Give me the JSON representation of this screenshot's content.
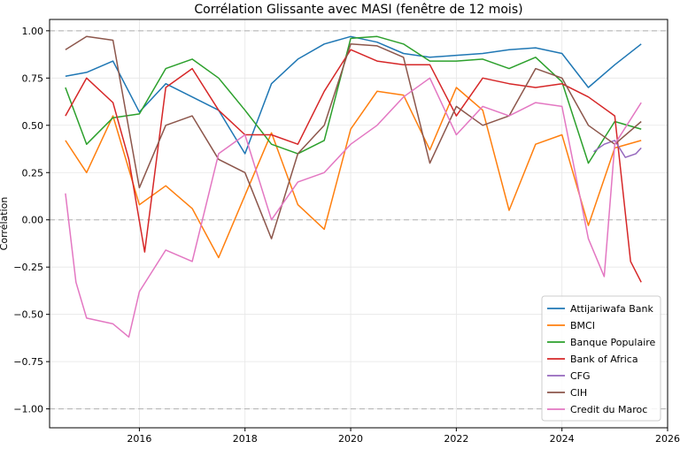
{
  "chart_data": {
    "type": "line",
    "title": "Corrélation Glissante avec MASI (fenêtre de 12 mois)",
    "xlabel": "",
    "ylabel": "Corrélation",
    "xlim": [
      2014.3,
      2026.0
    ],
    "ylim": [
      -1.1,
      1.06
    ],
    "xticks": [
      {
        "value": 2016,
        "label": "2016"
      },
      {
        "value": 2018,
        "label": "2018"
      },
      {
        "value": 2020,
        "label": "2020"
      },
      {
        "value": 2022,
        "label": "2022"
      },
      {
        "value": 2024,
        "label": "2024"
      },
      {
        "value": 2026,
        "label": "2026"
      }
    ],
    "yticks": [
      {
        "value": 1.0,
        "label": "1.00"
      },
      {
        "value": 0.75,
        "label": "0.75"
      },
      {
        "value": 0.5,
        "label": "0.50"
      },
      {
        "value": 0.25,
        "label": "0.25"
      },
      {
        "value": 0.0,
        "label": "0.00"
      },
      {
        "value": -0.25,
        "label": "−0.25"
      },
      {
        "value": -0.5,
        "label": "−0.50"
      },
      {
        "value": -0.75,
        "label": "−0.75"
      },
      {
        "value": -1.0,
        "label": "−1.00"
      }
    ],
    "reference_lines": [
      1.0,
      0.0,
      -1.0
    ],
    "grid": true,
    "legend_position": "bottom-right",
    "series": [
      {
        "name": "Attijariwafa Bank",
        "color": "#1f77b4",
        "x": [
          2014.6,
          2015.0,
          2015.5,
          2016.0,
          2016.5,
          2017.0,
          2017.5,
          2018.0,
          2018.5,
          2019.0,
          2019.5,
          2020.0,
          2020.5,
          2021.0,
          2021.5,
          2022.0,
          2022.5,
          2023.0,
          2023.5,
          2024.0,
          2024.5,
          2025.0,
          2025.5
        ],
        "y": [
          0.76,
          0.78,
          0.84,
          0.57,
          0.72,
          0.65,
          0.58,
          0.35,
          0.72,
          0.85,
          0.93,
          0.97,
          0.94,
          0.88,
          0.86,
          0.87,
          0.88,
          0.9,
          0.91,
          0.88,
          0.7,
          0.82,
          0.93
        ]
      },
      {
        "name": "BMCI",
        "color": "#ff7f0e",
        "x": [
          2014.6,
          2015.0,
          2015.5,
          2016.0,
          2016.5,
          2017.0,
          2017.5,
          2018.0,
          2018.5,
          2019.0,
          2019.5,
          2020.0,
          2020.5,
          2021.0,
          2021.5,
          2022.0,
          2022.5,
          2023.0,
          2023.5,
          2024.0,
          2024.5,
          2025.0,
          2025.5
        ],
        "y": [
          0.42,
          0.25,
          0.55,
          0.08,
          0.18,
          0.06,
          -0.2,
          0.13,
          0.46,
          0.08,
          -0.05,
          0.48,
          0.68,
          0.66,
          0.37,
          0.7,
          0.58,
          0.05,
          0.4,
          0.45,
          -0.03,
          0.38,
          0.42
        ]
      },
      {
        "name": "Banque Populaire",
        "color": "#2ca02c",
        "x": [
          2014.6,
          2015.0,
          2015.5,
          2016.0,
          2016.5,
          2017.0,
          2017.5,
          2018.0,
          2018.5,
          2019.0,
          2019.5,
          2020.0,
          2020.5,
          2021.0,
          2021.5,
          2022.0,
          2022.5,
          2023.0,
          2023.5,
          2024.0,
          2024.5,
          2025.0,
          2025.5
        ],
        "y": [
          0.7,
          0.4,
          0.54,
          0.56,
          0.8,
          0.85,
          0.75,
          0.58,
          0.4,
          0.35,
          0.42,
          0.96,
          0.97,
          0.93,
          0.84,
          0.84,
          0.85,
          0.8,
          0.86,
          0.73,
          0.3,
          0.52,
          0.48
        ]
      },
      {
        "name": "Bank of Africa",
        "color": "#d62728",
        "x": [
          2014.6,
          2015.0,
          2015.5,
          2015.8,
          2016.1,
          2016.5,
          2017.0,
          2017.5,
          2018.0,
          2018.5,
          2019.0,
          2019.5,
          2020.0,
          2020.5,
          2021.0,
          2021.5,
          2022.0,
          2022.5,
          2023.0,
          2023.5,
          2024.0,
          2024.5,
          2025.0,
          2025.3,
          2025.5
        ],
        "y": [
          0.55,
          0.75,
          0.62,
          0.32,
          -0.17,
          0.7,
          0.8,
          0.58,
          0.45,
          0.45,
          0.4,
          0.68,
          0.9,
          0.84,
          0.82,
          0.82,
          0.55,
          0.75,
          0.72,
          0.7,
          0.72,
          0.65,
          0.55,
          -0.22,
          -0.33
        ]
      },
      {
        "name": "CFG",
        "color": "#9467bd",
        "x": [
          2024.6,
          2024.8,
          2025.0,
          2025.2,
          2025.4,
          2025.5
        ],
        "y": [
          0.36,
          0.4,
          0.42,
          0.33,
          0.35,
          0.38
        ]
      },
      {
        "name": "CIH",
        "color": "#8c564b",
        "x": [
          2014.6,
          2015.0,
          2015.5,
          2016.0,
          2016.5,
          2017.0,
          2017.5,
          2018.0,
          2018.5,
          2019.0,
          2019.5,
          2020.0,
          2020.5,
          2021.0,
          2021.5,
          2022.0,
          2022.5,
          2023.0,
          2023.5,
          2024.0,
          2024.5,
          2025.0,
          2025.5
        ],
        "y": [
          0.9,
          0.97,
          0.95,
          0.17,
          0.5,
          0.55,
          0.32,
          0.25,
          -0.1,
          0.35,
          0.5,
          0.93,
          0.92,
          0.86,
          0.3,
          0.6,
          0.5,
          0.55,
          0.8,
          0.75,
          0.5,
          0.4,
          0.52
        ]
      },
      {
        "name": "Credit du Maroc",
        "color": "#e377c2",
        "x": [
          2014.6,
          2014.8,
          2015.0,
          2015.5,
          2015.8,
          2016.0,
          2016.5,
          2017.0,
          2017.5,
          2018.0,
          2018.5,
          2019.0,
          2019.5,
          2020.0,
          2020.5,
          2021.0,
          2021.5,
          2022.0,
          2022.5,
          2023.0,
          2023.5,
          2024.0,
          2024.5,
          2024.8,
          2025.0,
          2025.5
        ],
        "y": [
          0.14,
          -0.33,
          -0.52,
          -0.55,
          -0.62,
          -0.38,
          -0.16,
          -0.22,
          0.35,
          0.45,
          0.0,
          0.2,
          0.25,
          0.4,
          0.5,
          0.65,
          0.75,
          0.45,
          0.6,
          0.55,
          0.62,
          0.6,
          -0.1,
          -0.3,
          0.4,
          0.62
        ]
      }
    ]
  }
}
